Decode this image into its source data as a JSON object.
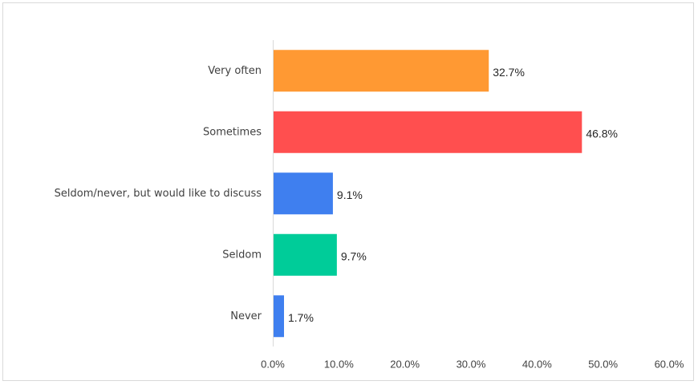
{
  "chart_data": {
    "type": "bar",
    "orientation": "horizontal",
    "categories": [
      "Very often",
      "Sometimes",
      "Seldom/never, but would like to discuss",
      "Seldom",
      "Never"
    ],
    "values": [
      32.7,
      46.8,
      9.1,
      9.7,
      1.7
    ],
    "value_labels": [
      "32.7%",
      "46.8%",
      "9.1%",
      "9.7%",
      "1.7%"
    ],
    "colors": [
      "#ff9933",
      "#ff4f4f",
      "#3f7fef",
      "#00cc99",
      "#3f7fef"
    ],
    "xlim": [
      0,
      60
    ],
    "x_ticks": [
      0,
      10,
      20,
      30,
      40,
      50,
      60
    ],
    "x_tick_labels": [
      "0.0%",
      "10.0%",
      "20.0%",
      "30.0%",
      "40.0%",
      "50.0%",
      "60.0%"
    ],
    "grid": false,
    "legend": "none",
    "title": "",
    "xlabel": "",
    "ylabel": ""
  }
}
